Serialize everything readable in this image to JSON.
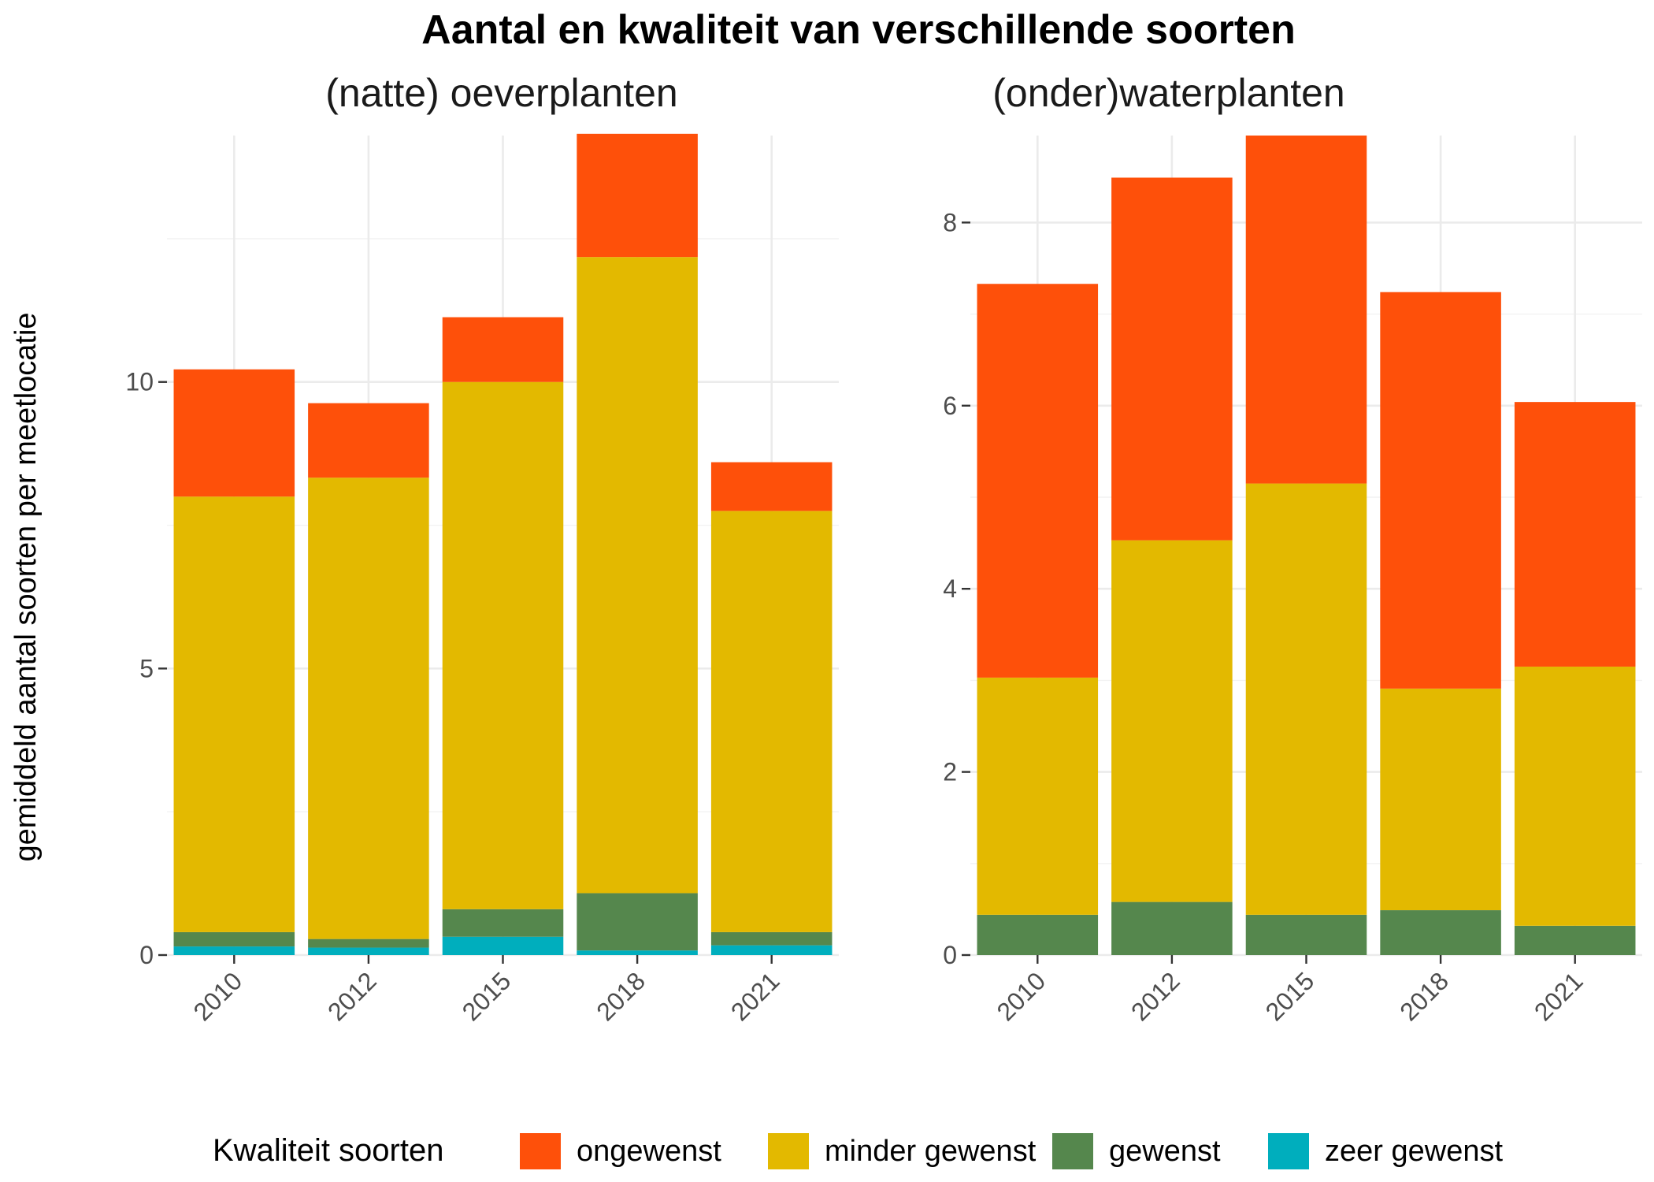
{
  "chart_data": {
    "type": "bar",
    "stacked": true,
    "title": "Aantal en kwaliteit van verschillende soorten",
    "ylabel": "gemiddeld aantal soorten per meetlocatie",
    "legend": {
      "title": "Kwaliteit soorten",
      "position": "bottom",
      "entries": [
        {
          "label": "ongewenst",
          "color": "#FE500A"
        },
        {
          "label": "minder gewenst",
          "color": "#E3B900"
        },
        {
          "label": "gewenst",
          "color": "#55874D"
        },
        {
          "label": "zeer gewenst",
          "color": "#00AEBD"
        }
      ]
    },
    "panels": [
      {
        "title": "(natte) oeverplanten",
        "categories": [
          "2010",
          "2012",
          "2015",
          "2018",
          "2021"
        ],
        "ylim": [
          0,
          14.3
        ],
        "yticks": [
          0,
          5,
          10
        ],
        "series": [
          {
            "name": "zeer gewenst",
            "values": [
              0.15,
              0.13,
              0.32,
              0.08,
              0.17
            ]
          },
          {
            "name": "gewenst",
            "values": [
              0.25,
              0.15,
              0.48,
              1.0,
              0.23
            ]
          },
          {
            "name": "minder gewenst",
            "values": [
              7.6,
              8.05,
              9.2,
              11.1,
              7.35
            ]
          },
          {
            "name": "ongewenst",
            "values": [
              2.22,
              1.3,
              1.13,
              2.15,
              0.85
            ]
          }
        ]
      },
      {
        "title": "(onder)waterplanten",
        "categories": [
          "2010",
          "2012",
          "2015",
          "2018",
          "2021"
        ],
        "ylim": [
          0,
          8.95
        ],
        "yticks": [
          0,
          2,
          4,
          6,
          8
        ],
        "series": [
          {
            "name": "zeer gewenst",
            "values": [
              0,
              0,
              0,
              0,
              0
            ]
          },
          {
            "name": "gewenst",
            "values": [
              0.44,
              0.58,
              0.44,
              0.49,
              0.32
            ]
          },
          {
            "name": "minder gewenst",
            "values": [
              2.59,
              3.95,
              4.71,
              2.42,
              2.83
            ]
          },
          {
            "name": "ongewenst",
            "values": [
              4.3,
              3.96,
              3.8,
              4.33,
              2.89
            ]
          }
        ]
      }
    ]
  }
}
